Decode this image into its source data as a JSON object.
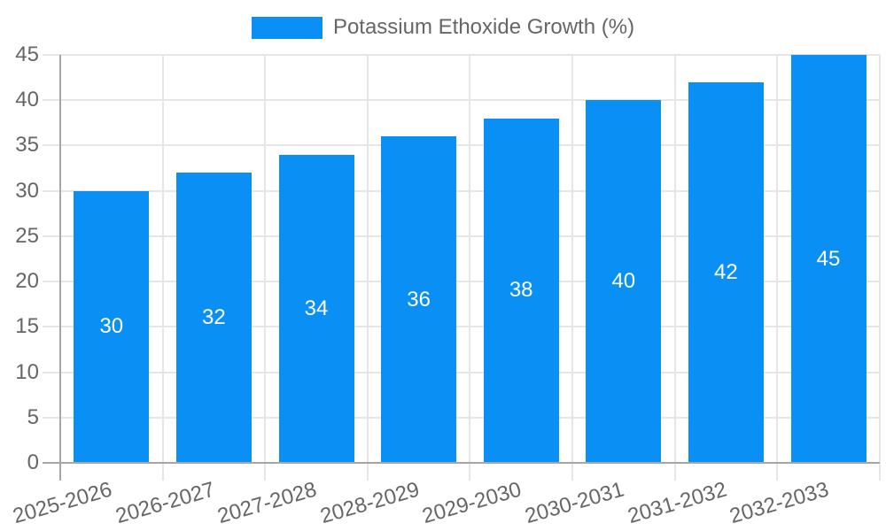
{
  "legend": {
    "label": "Potassium Ethoxide Growth (%)"
  },
  "chart_data": {
    "type": "bar",
    "title": "Potassium Ethoxide Growth (%)",
    "categories": [
      "2025-2026",
      "2026-2027",
      "2027-2028",
      "2028-2029",
      "2029-2030",
      "2030-2031",
      "2031-2032",
      "2032-2033"
    ],
    "values": [
      30,
      32,
      34,
      36,
      38,
      40,
      42,
      45
    ],
    "series_name": "Potassium Ethoxide Growth (%)",
    "xlabel": "",
    "ylabel": "",
    "ylim": [
      0,
      45
    ],
    "ytick_step": 5,
    "ytick_labels": [
      "0",
      "5",
      "10",
      "15",
      "20",
      "25",
      "30",
      "35",
      "40",
      "45"
    ],
    "legend_position": "top-center",
    "grid": true,
    "data_labels_position": "inside-center",
    "x_label_rotation_deg": -16,
    "colors": {
      "bar": "#0a90f5",
      "grid": "#e6e6e6",
      "axis": "#a6a6a6",
      "tick_text": "#666666",
      "legend_text": "#666666",
      "value_label": "#ffffff",
      "background": "#ffffff"
    }
  }
}
